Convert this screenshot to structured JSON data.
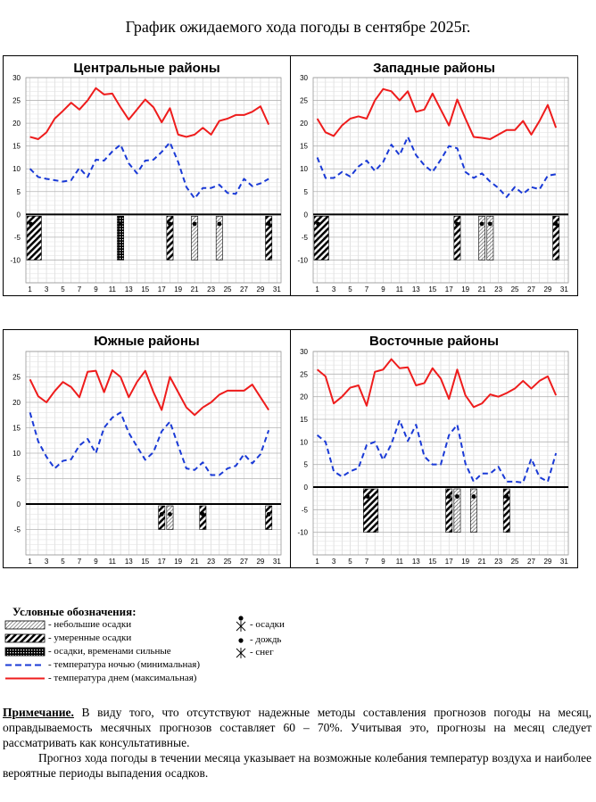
{
  "page_title": "График ожидаемого хода погоды в сентябре 2025г.",
  "colors": {
    "day": "#ee1c1c",
    "night": "#1a3ad6",
    "grid": "#d0d0d0",
    "axis": "#000000"
  },
  "chart_data": [
    {
      "type": "line",
      "title": "Центральные районы",
      "x": [
        1,
        2,
        3,
        4,
        5,
        6,
        7,
        8,
        9,
        10,
        11,
        12,
        13,
        14,
        15,
        16,
        17,
        18,
        19,
        20,
        21,
        22,
        23,
        24,
        25,
        26,
        27,
        28,
        29,
        30
      ],
      "xticks": [
        1,
        3,
        5,
        7,
        9,
        11,
        13,
        15,
        17,
        19,
        21,
        23,
        25,
        27,
        29,
        31
      ],
      "ylim": [
        -15,
        30
      ],
      "yticks": [
        -10,
        -5,
        0,
        5,
        10,
        15,
        20,
        25,
        30
      ],
      "series": [
        {
          "role": "day",
          "values": [
            17,
            16.5,
            18,
            21,
            22.7,
            24.5,
            23,
            25,
            27.7,
            26.3,
            26.5,
            23.5,
            20.8,
            23,
            25.2,
            23.5,
            20.2,
            23.3,
            17.5,
            17,
            17.5,
            19,
            17.5,
            20.5,
            21,
            21.8,
            21.8,
            22.5,
            23.7,
            19.7
          ]
        },
        {
          "role": "night",
          "values": [
            10,
            8.2,
            7.8,
            7.5,
            7.2,
            7.5,
            10.2,
            8.2,
            12,
            11.8,
            13.8,
            15.3,
            11.2,
            9,
            11.8,
            12,
            13.7,
            15.8,
            11.5,
            6,
            3.5,
            5.8,
            5.8,
            6.5,
            4.7,
            4.5,
            7.8,
            6.2,
            6.8,
            7.8
          ]
        }
      ],
      "precipitation": [
        {
          "day": 1,
          "intensity": "moderate",
          "width": 2,
          "depth": -10
        },
        {
          "day": 12,
          "intensity": "heavy",
          "width": 1,
          "depth": -10
        },
        {
          "day": 18,
          "intensity": "moderate",
          "width": 1,
          "depth": -10
        },
        {
          "day": 21,
          "intensity": "light",
          "width": 1,
          "depth": -10
        },
        {
          "day": 24,
          "intensity": "light",
          "width": 1,
          "depth": -10
        },
        {
          "day": 30,
          "intensity": "moderate",
          "width": 1,
          "depth": -10
        }
      ]
    },
    {
      "type": "line",
      "title": "Западные районы",
      "x": [
        1,
        2,
        3,
        4,
        5,
        6,
        7,
        8,
        9,
        10,
        11,
        12,
        13,
        14,
        15,
        16,
        17,
        18,
        19,
        20,
        21,
        22,
        23,
        24,
        25,
        26,
        27,
        28,
        29,
        30
      ],
      "xticks": [
        1,
        3,
        5,
        7,
        9,
        11,
        13,
        15,
        17,
        19,
        21,
        23,
        25,
        27,
        29,
        31
      ],
      "ylim": [
        -15,
        30
      ],
      "yticks": [
        -10,
        -5,
        0,
        5,
        10,
        15,
        20,
        25,
        30
      ],
      "series": [
        {
          "role": "day",
          "values": [
            21,
            18,
            17.2,
            19.5,
            21,
            21.5,
            21,
            25,
            27.5,
            27,
            25,
            27,
            22.5,
            23,
            26.5,
            23,
            19.5,
            25.2,
            21,
            17,
            16.8,
            16.5,
            17.5,
            18.5,
            18.5,
            20.5,
            17.5,
            20.5,
            24,
            19
          ]
        },
        {
          "role": "night",
          "values": [
            12.5,
            8,
            8,
            9.3,
            8.3,
            10.5,
            11.8,
            9.5,
            11.5,
            15.3,
            13,
            17,
            13,
            10.8,
            9.3,
            12,
            15,
            14.5,
            9.3,
            8,
            9,
            7.2,
            5.8,
            3.8,
            6,
            4.5,
            6,
            5.5,
            8.5,
            8.8
          ]
        }
      ],
      "precipitation": [
        {
          "day": 1,
          "intensity": "moderate",
          "width": 2,
          "depth": -10
        },
        {
          "day": 18,
          "intensity": "moderate",
          "width": 1,
          "depth": -10
        },
        {
          "day": 21,
          "intensity": "light",
          "width": 1,
          "depth": -10
        },
        {
          "day": 22,
          "intensity": "light",
          "width": 1,
          "depth": -10
        },
        {
          "day": 30,
          "intensity": "moderate",
          "width": 1,
          "depth": -10
        }
      ]
    },
    {
      "type": "line",
      "title": "Южные районы",
      "x": [
        1,
        2,
        3,
        4,
        5,
        6,
        7,
        8,
        9,
        10,
        11,
        12,
        13,
        14,
        15,
        16,
        17,
        18,
        19,
        20,
        21,
        22,
        23,
        24,
        25,
        26,
        27,
        28,
        29,
        30
      ],
      "xticks": [
        1,
        3,
        5,
        7,
        9,
        11,
        13,
        15,
        17,
        19,
        21,
        23,
        25,
        27,
        29,
        31
      ],
      "ylim": [
        -10,
        30
      ],
      "yticks": [
        -5,
        0,
        5,
        10,
        15,
        20,
        25
      ],
      "series": [
        {
          "role": "day",
          "values": [
            24.5,
            21.2,
            20,
            22.2,
            24,
            23,
            21,
            26,
            26.2,
            22,
            26.3,
            25,
            21,
            24,
            26.2,
            22,
            18.5,
            25,
            22,
            19,
            17.5,
            19,
            20,
            21.5,
            22.3,
            22.3,
            22.3,
            23.5,
            21,
            18.5
          ]
        },
        {
          "role": "night",
          "values": [
            18,
            12.3,
            9.3,
            7,
            8.5,
            8.8,
            11.5,
            12.8,
            10,
            15,
            17,
            18,
            14,
            11.3,
            8.7,
            10.2,
            14.3,
            16.2,
            11.5,
            7,
            6.7,
            8.2,
            5.7,
            5.7,
            7,
            7.5,
            9.8,
            8,
            9.8,
            14.5
          ]
        }
      ],
      "precipitation": [
        {
          "day": 17,
          "intensity": "moderate",
          "width": 1,
          "depth": -5
        },
        {
          "day": 18,
          "intensity": "light",
          "width": 1,
          "depth": -5
        },
        {
          "day": 22,
          "intensity": "moderate",
          "width": 1,
          "depth": -5
        },
        {
          "day": 30,
          "intensity": "moderate",
          "width": 1,
          "depth": -5
        }
      ]
    },
    {
      "type": "line",
      "title": "Восточные районы",
      "x": [
        1,
        2,
        3,
        4,
        5,
        6,
        7,
        8,
        9,
        10,
        11,
        12,
        13,
        14,
        15,
        16,
        17,
        18,
        19,
        20,
        21,
        22,
        23,
        24,
        25,
        26,
        27,
        28,
        29,
        30
      ],
      "xticks": [
        1,
        3,
        5,
        7,
        9,
        11,
        13,
        15,
        17,
        19,
        21,
        23,
        25,
        27,
        29,
        31
      ],
      "ylim": [
        -15,
        30
      ],
      "yticks": [
        -10,
        -5,
        0,
        5,
        10,
        15,
        20,
        25,
        30
      ],
      "series": [
        {
          "role": "day",
          "values": [
            26,
            24.5,
            18.5,
            20,
            22,
            22.5,
            18,
            25.5,
            26,
            28.3,
            26.3,
            26.5,
            22.5,
            23,
            26.3,
            24,
            19.5,
            26,
            20.3,
            17.7,
            18.5,
            20.5,
            20,
            20.8,
            21.8,
            23.5,
            21.8,
            23.5,
            24.5,
            20.3
          ]
        },
        {
          "role": "night",
          "values": [
            11.5,
            10,
            3.5,
            2.3,
            3.5,
            4.2,
            9.3,
            10,
            6,
            9.5,
            14.8,
            10.2,
            13.8,
            6.8,
            5,
            5,
            11.5,
            13.8,
            5.2,
            1.2,
            3,
            3,
            4.5,
            1.2,
            1.2,
            1,
            6.3,
            2.2,
            1.2,
            7.5
          ]
        }
      ],
      "precipitation": [
        {
          "day": 7,
          "intensity": "moderate",
          "width": 2,
          "depth": -10
        },
        {
          "day": 17,
          "intensity": "moderate",
          "width": 1,
          "depth": -10
        },
        {
          "day": 18,
          "intensity": "light",
          "width": 1,
          "depth": -10
        },
        {
          "day": 20,
          "intensity": "light",
          "width": 1,
          "depth": -10
        },
        {
          "day": 24,
          "intensity": "moderate",
          "width": 1,
          "depth": -10
        }
      ]
    }
  ],
  "legend": {
    "title": "Условные обозначения:",
    "items": [
      {
        "key": "light",
        "label": "- небольшие осадки"
      },
      {
        "key": "moderate",
        "label": "- умеренные осадки"
      },
      {
        "key": "heavy",
        "label": "- осадки, временами сильные"
      },
      {
        "key": "night",
        "label": "- температура ночью (минимальная)"
      },
      {
        "key": "day",
        "label": "- температура днем (максимальная)"
      }
    ],
    "symbols": [
      {
        "key": "precip-symbol",
        "label": "- осадки"
      },
      {
        "key": "rain-symbol",
        "label": "- дождь"
      },
      {
        "key": "snow-symbol",
        "label": "- снег"
      }
    ]
  },
  "note": {
    "label": "Примечание.",
    "text1": " В виду того, что отсутствуют надежные методы составления прогнозов погоды на месяц, оправдываемость месячных прогнозов составляет 60 – 70%. Учитывая это, прогнозы на месяц следует рассматривать как консультативные.",
    "text2": "Прогноз хода погоды в течении месяца указывает на возможные колебания температур воздуха и наиболее вероятные периоды выпадения осадков."
  }
}
